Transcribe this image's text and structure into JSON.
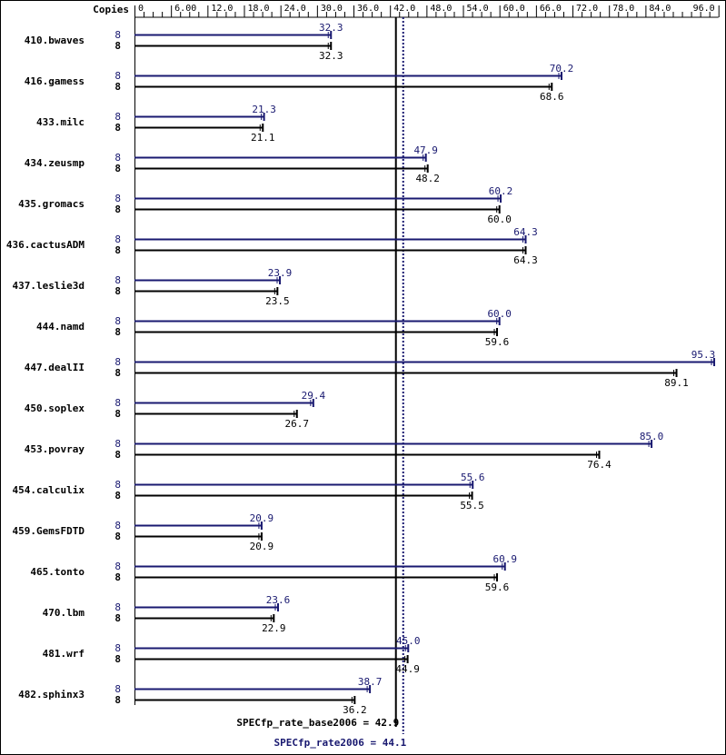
{
  "chart_data": {
    "type": "bar",
    "header_label": "Copies",
    "x_ticks": [
      "0",
      "6.00",
      "12.0",
      "18.0",
      "24.0",
      "30.0",
      "36.0",
      "42.0",
      "48.0",
      "54.0",
      "60.0",
      "66.0",
      "72.0",
      "78.0",
      "84.0",
      "96.0"
    ],
    "tick_step": 1.5,
    "labeled_ticks": [
      0,
      6,
      12,
      18,
      24,
      30,
      36,
      42,
      48,
      54,
      60,
      66,
      72,
      78,
      84,
      96
    ],
    "xlim": [
      0,
      96
    ],
    "categories": [
      "410.bwaves",
      "416.gamess",
      "433.milc",
      "434.zeusmp",
      "435.gromacs",
      "436.cactusADM",
      "437.leslie3d",
      "444.namd",
      "447.dealII",
      "450.soplex",
      "453.povray",
      "454.calculix",
      "459.GemsFDTD",
      "465.tonto",
      "470.lbm",
      "481.wrf",
      "482.sphinx3"
    ],
    "series": [
      {
        "key": "peak",
        "color": "#191970",
        "copies": [
          "8",
          "8",
          "8",
          "8",
          "8",
          "8",
          "8",
          "8",
          "8",
          "8",
          "8",
          "8",
          "8",
          "8",
          "8",
          "8",
          "8"
        ],
        "values": [
          32.3,
          70.2,
          21.3,
          47.9,
          60.2,
          64.3,
          23.9,
          60.0,
          95.3,
          29.4,
          85.0,
          55.6,
          20.9,
          60.9,
          23.6,
          45.0,
          38.7
        ],
        "labels": [
          "32.3",
          "70.2",
          "21.3",
          "47.9",
          "60.2",
          "64.3",
          "23.9",
          "60.0",
          "95.3",
          "29.4",
          "85.0",
          "55.6",
          "20.9",
          "60.9",
          "23.6",
          "45.0",
          "38.7"
        ]
      },
      {
        "key": "base",
        "color": "#000000",
        "copies": [
          "8",
          "8",
          "8",
          "8",
          "8",
          "8",
          "8",
          "8",
          "8",
          "8",
          "8",
          "8",
          "8",
          "8",
          "8",
          "8",
          "8"
        ],
        "values": [
          32.3,
          68.6,
          21.1,
          48.2,
          60.0,
          64.3,
          23.5,
          59.6,
          89.1,
          26.7,
          76.4,
          55.5,
          20.9,
          59.6,
          22.9,
          44.9,
          36.2
        ],
        "labels": [
          "32.3",
          "68.6",
          "21.1",
          "48.2",
          "60.0",
          "64.3",
          "23.5",
          "59.6",
          "89.1",
          "26.7",
          "76.4",
          "55.5",
          "20.9",
          "59.6",
          "22.9",
          "44.9",
          "36.2"
        ]
      }
    ],
    "reference_lines": [
      {
        "key": "base",
        "value": 42.9,
        "label": "SPECfp_rate_base2006 = 42.9",
        "color": "#000000",
        "style": "solid"
      },
      {
        "key": "peak",
        "value": 44.1,
        "label": "SPECfp_rate2006 = 44.1",
        "color": "#191970",
        "style": "dotted"
      }
    ]
  }
}
